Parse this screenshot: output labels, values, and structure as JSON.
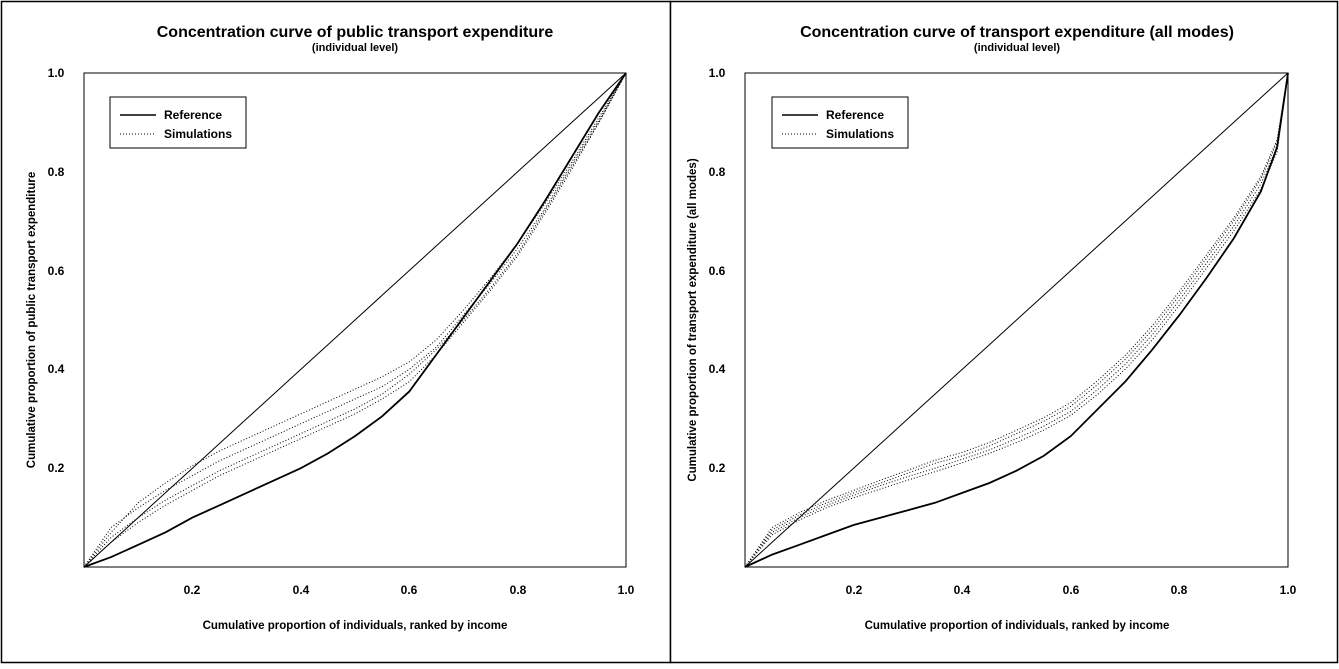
{
  "chart_data": [
    {
      "type": "line",
      "title": "Concentration curve of public transport expenditure",
      "subtitle": "(individual level)",
      "xlabel": "Cumulative proportion of individuals, ranked by income",
      "ylabel": "Cumulative proportion of public transport expenditure",
      "xlim": [
        0,
        1
      ],
      "ylim": [
        0,
        1
      ],
      "x_ticks": [
        "0.2",
        "0.4",
        "0.6",
        "0.8",
        "1.0"
      ],
      "y_ticks": [
        "0.2",
        "0.4",
        "0.6",
        "0.8",
        "1.0"
      ],
      "grid": false,
      "legend": {
        "placement": "top-left",
        "entries": [
          {
            "label": "Reference",
            "style": "solid"
          },
          {
            "label": "Simulations",
            "style": "dotted"
          }
        ]
      },
      "x": [
        0,
        0.05,
        0.1,
        0.15,
        0.2,
        0.25,
        0.3,
        0.35,
        0.4,
        0.45,
        0.5,
        0.55,
        0.6,
        0.65,
        0.7,
        0.75,
        0.8,
        0.85,
        0.9,
        0.95,
        1.0
      ],
      "series": [
        {
          "name": "equality",
          "values": [
            0,
            0.05,
            0.1,
            0.15,
            0.2,
            0.25,
            0.3,
            0.35,
            0.4,
            0.45,
            0.5,
            0.55,
            0.6,
            0.65,
            0.7,
            0.75,
            0.8,
            0.85,
            0.9,
            0.95,
            1.0
          ]
        },
        {
          "name": "Reference",
          "values": [
            0,
            0.02,
            0.045,
            0.07,
            0.1,
            0.125,
            0.15,
            0.175,
            0.2,
            0.23,
            0.265,
            0.305,
            0.355,
            0.43,
            0.505,
            0.58,
            0.655,
            0.74,
            0.83,
            0.92,
            1.0
          ]
        },
        {
          "name": "Simulations",
          "values": [
            0,
            0.08,
            0.12,
            0.155,
            0.185,
            0.215,
            0.24,
            0.265,
            0.29,
            0.315,
            0.34,
            0.365,
            0.4,
            0.445,
            0.51,
            0.575,
            0.645,
            0.725,
            0.815,
            0.905,
            1.0
          ]
        },
        {
          "name": "Simulations",
          "values": [
            0,
            0.06,
            0.1,
            0.135,
            0.165,
            0.195,
            0.22,
            0.245,
            0.27,
            0.295,
            0.32,
            0.35,
            0.39,
            0.44,
            0.5,
            0.565,
            0.635,
            0.72,
            0.81,
            0.9,
            1.0
          ]
        },
        {
          "name": "Simulations",
          "values": [
            0,
            0.05,
            0.09,
            0.125,
            0.155,
            0.185,
            0.21,
            0.235,
            0.26,
            0.285,
            0.31,
            0.34,
            0.375,
            0.43,
            0.495,
            0.56,
            0.63,
            0.715,
            0.805,
            0.9,
            1.0
          ]
        },
        {
          "name": "Simulations",
          "values": [
            0,
            0.07,
            0.13,
            0.17,
            0.205,
            0.235,
            0.26,
            0.285,
            0.31,
            0.335,
            0.36,
            0.385,
            0.415,
            0.46,
            0.52,
            0.585,
            0.655,
            0.735,
            0.82,
            0.91,
            1.0
          ]
        }
      ]
    },
    {
      "type": "line",
      "title": "Concentration curve of transport expenditure (all modes)",
      "subtitle": "(individual level)",
      "xlabel": "Cumulative proportion of individuals, ranked by income",
      "ylabel": "Cumulative proportion of transport expenditure (all modes)",
      "xlim": [
        0,
        1
      ],
      "ylim": [
        0,
        1
      ],
      "x_ticks": [
        "0.2",
        "0.4",
        "0.6",
        "0.8",
        "1.0"
      ],
      "y_ticks": [
        "0.2",
        "0.4",
        "0.6",
        "0.8",
        "1.0"
      ],
      "grid": false,
      "legend": {
        "placement": "top-left",
        "entries": [
          {
            "label": "Reference",
            "style": "solid"
          },
          {
            "label": "Simulations",
            "style": "dotted"
          }
        ]
      },
      "x": [
        0,
        0.05,
        0.1,
        0.15,
        0.2,
        0.25,
        0.3,
        0.35,
        0.4,
        0.45,
        0.5,
        0.55,
        0.6,
        0.65,
        0.7,
        0.75,
        0.8,
        0.85,
        0.9,
        0.95,
        0.98,
        1.0
      ],
      "series": [
        {
          "name": "equality",
          "values": [
            0,
            0.05,
            0.1,
            0.15,
            0.2,
            0.25,
            0.3,
            0.35,
            0.4,
            0.45,
            0.5,
            0.55,
            0.6,
            0.65,
            0.7,
            0.75,
            0.8,
            0.85,
            0.9,
            0.95,
            0.98,
            1.0
          ]
        },
        {
          "name": "Reference",
          "values": [
            0,
            0.025,
            0.045,
            0.065,
            0.085,
            0.1,
            0.115,
            0.13,
            0.15,
            0.17,
            0.195,
            0.225,
            0.265,
            0.32,
            0.375,
            0.44,
            0.51,
            0.585,
            0.665,
            0.76,
            0.85,
            1.0
          ]
        },
        {
          "name": "Simulations",
          "values": [
            0,
            0.075,
            0.105,
            0.13,
            0.15,
            0.17,
            0.19,
            0.21,
            0.225,
            0.245,
            0.27,
            0.295,
            0.325,
            0.37,
            0.42,
            0.48,
            0.55,
            0.625,
            0.7,
            0.785,
            0.86,
            1.0
          ]
        },
        {
          "name": "Simulations",
          "values": [
            0,
            0.07,
            0.1,
            0.125,
            0.145,
            0.165,
            0.183,
            0.2,
            0.218,
            0.237,
            0.26,
            0.285,
            0.315,
            0.36,
            0.41,
            0.47,
            0.54,
            0.615,
            0.69,
            0.775,
            0.85,
            1.0
          ]
        },
        {
          "name": "Simulations",
          "values": [
            0,
            0.065,
            0.095,
            0.12,
            0.14,
            0.158,
            0.176,
            0.193,
            0.211,
            0.23,
            0.252,
            0.277,
            0.307,
            0.35,
            0.4,
            0.46,
            0.53,
            0.605,
            0.68,
            0.765,
            0.84,
            1.0
          ]
        },
        {
          "name": "Simulations",
          "values": [
            0,
            0.08,
            0.11,
            0.135,
            0.155,
            0.176,
            0.196,
            0.216,
            0.232,
            0.252,
            0.277,
            0.302,
            0.333,
            0.378,
            0.428,
            0.488,
            0.558,
            0.632,
            0.706,
            0.79,
            0.865,
            1.0
          ]
        }
      ]
    }
  ]
}
